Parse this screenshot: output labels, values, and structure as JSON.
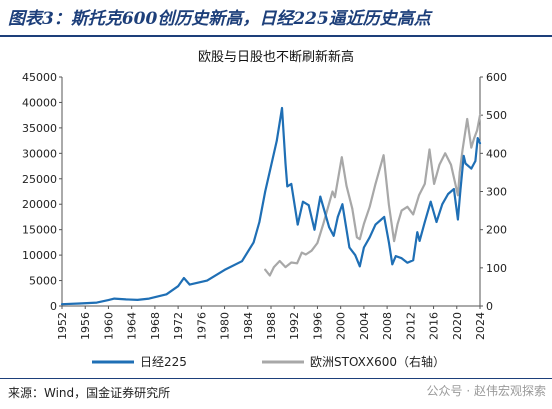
{
  "figure": {
    "title": "图表3：斯托克600创历史新高，日经225逼近历史高点",
    "source": "来源：Wind，国金证券研究所",
    "watermark": "公众号 · 赵伟宏观探索"
  },
  "chart_data": {
    "type": "line",
    "title": "欧股与日股也不断刷新新高",
    "xlabel": "",
    "ylabel": "",
    "x_ticks": [
      "1952",
      "1956",
      "1960",
      "1964",
      "1968",
      "1972",
      "1976",
      "1980",
      "1984",
      "1988",
      "1992",
      "1996",
      "2000",
      "2004",
      "2008",
      "2012",
      "2016",
      "2020",
      "2024"
    ],
    "xlim": [
      1952,
      2024
    ],
    "ylim_left": [
      0,
      45000
    ],
    "y_ticks_left": [
      "0",
      "5000",
      "10000",
      "15000",
      "20000",
      "25000",
      "30000",
      "35000",
      "40000",
      "45000"
    ],
    "ylim_right": [
      0,
      600
    ],
    "y_ticks_right": [
      "0",
      "100",
      "200",
      "300",
      "400",
      "500",
      "600"
    ],
    "legend_position": "bottom",
    "series": [
      {
        "name": "日经225",
        "axis": "left",
        "color": "#1f6fb5",
        "x": [
          1952,
          1955,
          1958,
          1960,
          1961,
          1963,
          1965,
          1967,
          1970,
          1972,
          1973,
          1974,
          1977,
          1980,
          1983,
          1985,
          1986,
          1987,
          1988,
          1989,
          1989.9,
          1990.5,
          1990.8,
          1991.5,
          1992.6,
          1993.5,
          1994.5,
          1995.5,
          1996.5,
          1998,
          1998.8,
          1999.5,
          2000.3,
          2001.5,
          2002.5,
          2003.3,
          2004,
          2005,
          2006,
          2007.5,
          2008.3,
          2008.9,
          2009.5,
          2010.5,
          2011.5,
          2012.5,
          2013.2,
          2013.6,
          2014.5,
          2015.5,
          2016.5,
          2017.5,
          2018.5,
          2019.5,
          2020.2,
          2020.6,
          2021.2,
          2021.5,
          2022.5,
          2023.2,
          2023.6,
          2024
        ],
        "y": [
          360,
          500,
          660,
          1150,
          1450,
          1300,
          1200,
          1450,
          2300,
          3900,
          5500,
          4200,
          5000,
          7100,
          8800,
          12500,
          16500,
          22500,
          27500,
          32500,
          38900,
          28000,
          23500,
          24000,
          16000,
          20500,
          19800,
          15000,
          21500,
          15500,
          13800,
          17500,
          20000,
          11500,
          10000,
          7800,
          11500,
          13500,
          16000,
          17500,
          12500,
          8200,
          9800,
          9400,
          8500,
          9000,
          14500,
          12800,
          16500,
          20500,
          16500,
          20000,
          22000,
          23000,
          17000,
          22500,
          29500,
          28000,
          27000,
          28500,
          33000,
          32000
        ]
      },
      {
        "name": "欧洲STOXX600（右轴）",
        "axis": "right",
        "color": "#a8a8a8",
        "x": [
          1987,
          1987.8,
          1988.5,
          1989.5,
          1990.5,
          1991.5,
          1992.5,
          1993.3,
          1994,
          1995,
          1996,
          1997,
          1998.6,
          1999,
          2000.2,
          2001,
          2002,
          2002.8,
          2003.3,
          2004,
          2005,
          2006,
          2007.4,
          2008.3,
          2009.2,
          2009.8,
          2010.5,
          2011.5,
          2012.5,
          2013.5,
          2014.5,
          2015.3,
          2016.1,
          2017,
          2018,
          2019,
          2020.2,
          2020.5,
          2021,
          2021.8,
          2022.5,
          2023,
          2023.5,
          2024
        ],
        "y": [
          95,
          80,
          102,
          118,
          102,
          114,
          112,
          140,
          135,
          145,
          165,
          215,
          300,
          285,
          390,
          315,
          255,
          180,
          175,
          215,
          260,
          320,
          395,
          265,
          170,
          215,
          250,
          260,
          240,
          290,
          320,
          410,
          320,
          370,
          400,
          370,
          290,
          350,
          410,
          490,
          415,
          440,
          460,
          500
        ]
      }
    ]
  }
}
